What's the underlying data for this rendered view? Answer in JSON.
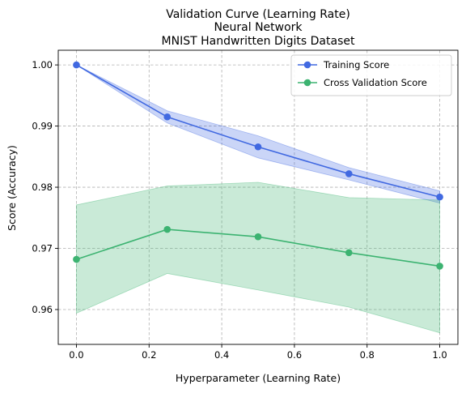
{
  "chart_data": {
    "type": "line",
    "title": [
      "Validation Curve (Learning Rate)",
      "Neural Network",
      "MNIST Handwritten Digits Dataset"
    ],
    "xlabel": "Hyperparameter (Learning Rate)",
    "ylabel": "Score (Accuracy)",
    "xlim": [
      -0.05,
      1.05
    ],
    "ylim": [
      0.9543,
      1.0024
    ],
    "xticks": [
      0.0,
      0.2,
      0.4,
      0.6,
      0.8,
      1.0
    ],
    "xtick_labels": [
      "0.0",
      "0.2",
      "0.4",
      "0.6",
      "0.8",
      "1.0"
    ],
    "yticks": [
      0.96,
      0.97,
      0.98,
      0.99,
      1.0
    ],
    "ytick_labels": [
      "0.96",
      "0.97",
      "0.98",
      "0.99",
      "1.00"
    ],
    "grid": true,
    "legend_position": "top-right",
    "x": [
      0.0,
      0.25,
      0.5,
      0.75,
      1.0
    ],
    "series": [
      {
        "name": "Training Score",
        "color": "#4169e1",
        "band_color": "#4169e1",
        "values": [
          1.0,
          0.9915,
          0.9866,
          0.9822,
          0.9784
        ],
        "upper": [
          1.0,
          0.9925,
          0.9884,
          0.9832,
          0.9794
        ],
        "lower": [
          1.0,
          0.9905,
          0.9848,
          0.9812,
          0.9774
        ]
      },
      {
        "name": "Cross Validation Score",
        "color": "#3cb371",
        "band_color": "#3cb371",
        "values": [
          0.9682,
          0.9731,
          0.9719,
          0.9693,
          0.9671
        ],
        "upper": [
          0.9771,
          0.9802,
          0.9808,
          0.9783,
          0.9779
        ],
        "lower": [
          0.9594,
          0.9659,
          0.9632,
          0.9604,
          0.9562
        ]
      }
    ]
  }
}
